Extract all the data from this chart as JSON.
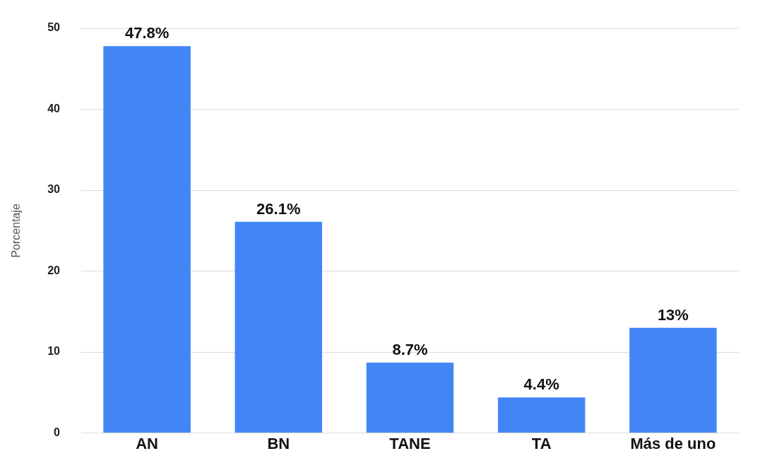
{
  "chart_data": {
    "type": "bar",
    "ylabel": "Porcentaje",
    "categories": [
      "AN",
      "BN",
      "TANE",
      "TA",
      "Más de uno"
    ],
    "values": [
      47.8,
      26.1,
      8.7,
      4.4,
      13
    ],
    "value_labels": [
      "47.8%",
      "26.1%",
      "8.7%",
      "4.4%",
      "13%"
    ],
    "color": "#4285f4",
    "ylim": [
      0,
      50
    ],
    "yticks": [
      0,
      10,
      20,
      30,
      40,
      50
    ],
    "grid": "y",
    "legend": false
  }
}
